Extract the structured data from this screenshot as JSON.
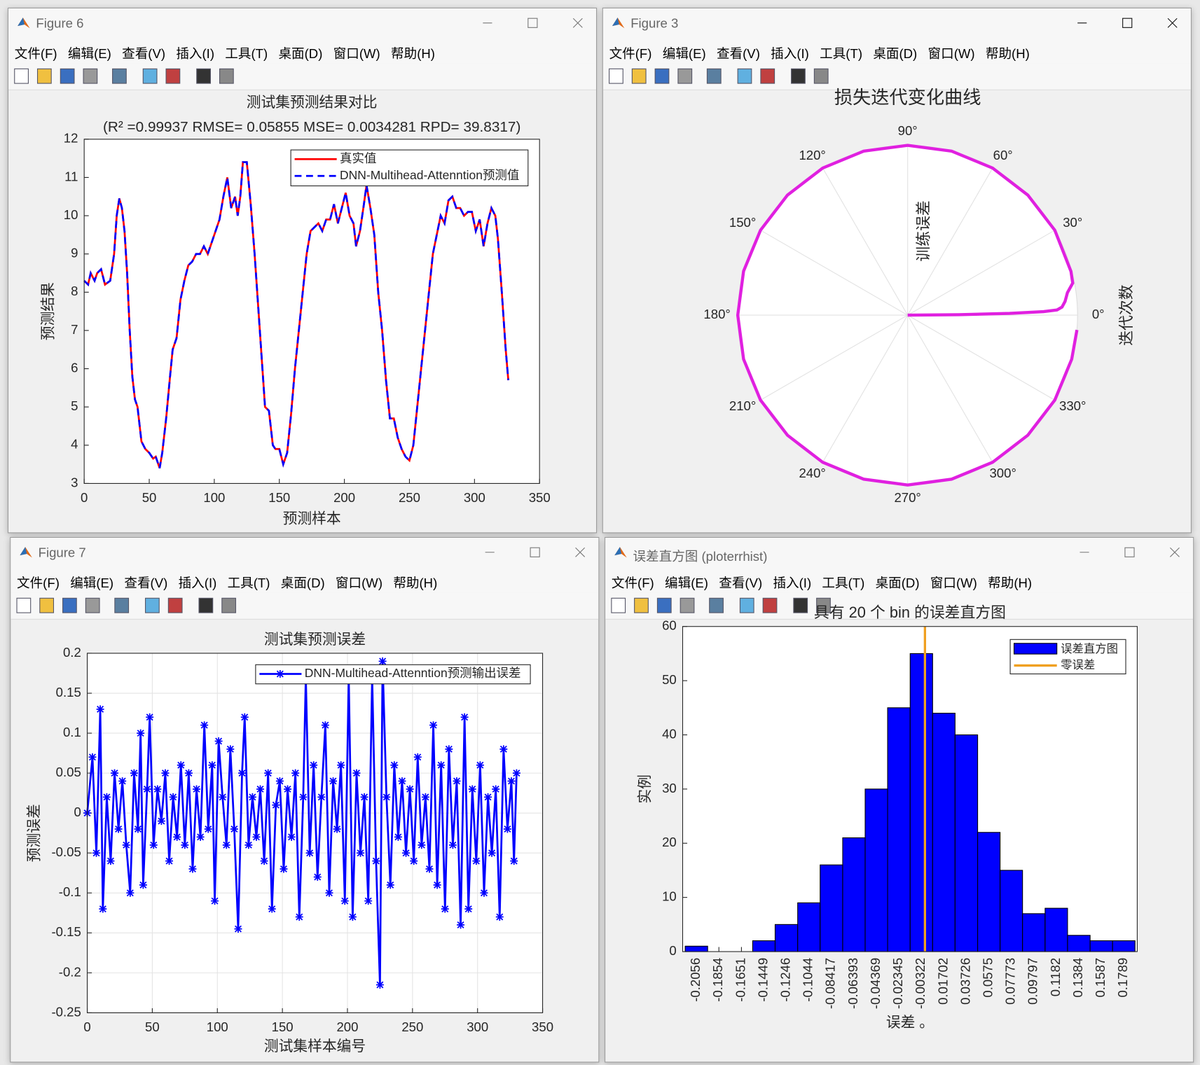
{
  "windows": [
    {
      "title": "Figure 6"
    },
    {
      "title": "Figure 3"
    },
    {
      "title": "Figure 7"
    },
    {
      "title": "误差直方图 (ploterrhist)"
    }
  ],
  "menu": [
    "文件(F)",
    "编辑(E)",
    "查看(V)",
    "插入(I)",
    "工具(T)",
    "桌面(D)",
    "窗口(W)",
    "帮助(H)"
  ],
  "chart_data": [
    {
      "type": "line",
      "title": "测试集预测结果对比",
      "subtitle": "(R² =0.99937 RMSE= 0.05855 MSE= 0.0034281 RPD= 39.8317)",
      "x_label": "预测样本",
      "y_label": "预测结果",
      "grid": false,
      "legend": "upper right",
      "xlim": [
        0,
        350
      ],
      "xticks": [
        0,
        50,
        100,
        150,
        200,
        250,
        300,
        350
      ],
      "ylim": [
        3,
        12
      ],
      "yticks": [
        3,
        4,
        5,
        6,
        7,
        8,
        9,
        10,
        11,
        12
      ],
      "x": [
        0,
        3,
        5,
        8,
        10,
        13,
        16,
        20,
        23,
        25,
        27,
        29,
        31,
        33,
        35,
        37,
        39,
        41,
        44,
        47,
        50,
        53,
        55,
        58,
        60,
        63,
        66,
        68,
        71,
        74,
        77,
        80,
        83,
        86,
        89,
        92,
        95,
        98,
        101,
        104,
        107,
        110,
        113,
        116,
        118,
        120,
        122,
        125,
        128,
        131,
        134,
        137,
        139,
        142,
        145,
        147,
        150,
        153,
        156,
        159,
        162,
        165,
        168,
        171,
        174,
        177,
        180,
        183,
        186,
        189,
        192,
        195,
        198,
        201,
        204,
        207,
        209,
        212,
        215,
        217,
        220,
        223,
        226,
        229,
        232,
        235,
        238,
        241,
        244,
        247,
        250,
        253,
        256,
        259,
        262,
        265,
        268,
        271,
        274,
        277,
        280,
        283,
        286,
        289,
        292,
        295,
        298,
        301,
        304,
        307,
        310,
        313,
        316,
        318,
        321,
        324,
        326
      ],
      "series": [
        {
          "name": "真实值",
          "color": "#ff0000",
          "dash": false,
          "values": [
            8.3,
            8.2,
            8.5,
            8.3,
            8.5,
            8.6,
            8.2,
            8.3,
            9.0,
            10.0,
            10.45,
            10.2,
            9.6,
            8.5,
            7.0,
            5.8,
            5.2,
            5.0,
            4.1,
            3.9,
            3.8,
            3.65,
            3.7,
            3.4,
            3.8,
            4.7,
            5.8,
            6.5,
            6.8,
            7.8,
            8.3,
            8.7,
            8.8,
            9.0,
            9.0,
            9.2,
            9.0,
            9.3,
            9.6,
            9.9,
            10.5,
            11.0,
            10.2,
            10.5,
            10.0,
            10.5,
            11.4,
            11.4,
            10.3,
            9.0,
            7.5,
            6.0,
            5.0,
            4.9,
            4.0,
            3.9,
            3.9,
            3.5,
            3.8,
            4.8,
            6.0,
            7.0,
            8.0,
            9.0,
            9.6,
            9.7,
            9.8,
            9.6,
            9.9,
            9.9,
            10.3,
            9.8,
            10.2,
            10.6,
            10.0,
            9.8,
            9.2,
            9.6,
            10.3,
            10.8,
            10.2,
            9.5,
            8.0,
            7.0,
            5.7,
            4.7,
            4.7,
            4.2,
            3.9,
            3.7,
            3.6,
            4.0,
            5.0,
            6.0,
            7.0,
            8.0,
            9.0,
            9.5,
            10.0,
            9.8,
            10.4,
            10.5,
            10.2,
            10.2,
            10.0,
            10.1,
            10.1,
            9.6,
            9.9,
            9.2,
            9.8,
            10.2,
            10.0,
            9.4,
            8.0,
            6.5,
            5.7
          ]
        },
        {
          "name": "DNN-Multihead-Attenntion预测值",
          "color": "#0000ff",
          "dash": true,
          "values": [
            8.3,
            8.2,
            8.5,
            8.3,
            8.5,
            8.6,
            8.2,
            8.3,
            9.0,
            10.0,
            10.45,
            10.2,
            9.6,
            8.5,
            7.0,
            5.8,
            5.2,
            5.0,
            4.1,
            3.9,
            3.8,
            3.65,
            3.7,
            3.4,
            3.8,
            4.7,
            5.8,
            6.5,
            6.8,
            7.8,
            8.3,
            8.7,
            8.8,
            9.0,
            9.0,
            9.2,
            9.0,
            9.3,
            9.6,
            9.9,
            10.5,
            11.0,
            10.2,
            10.5,
            10.0,
            10.5,
            11.4,
            11.4,
            10.3,
            9.0,
            7.5,
            6.0,
            5.0,
            4.9,
            4.0,
            3.9,
            3.9,
            3.5,
            3.8,
            4.8,
            6.0,
            7.0,
            8.0,
            9.0,
            9.6,
            9.7,
            9.8,
            9.6,
            9.9,
            9.9,
            10.3,
            9.8,
            10.2,
            10.6,
            10.0,
            9.8,
            9.2,
            9.6,
            10.3,
            10.8,
            10.2,
            9.5,
            8.0,
            7.0,
            5.7,
            4.7,
            4.7,
            4.2,
            3.9,
            3.7,
            3.6,
            4.0,
            5.0,
            6.0,
            7.0,
            8.0,
            9.0,
            9.5,
            10.0,
            9.8,
            10.4,
            10.5,
            10.2,
            10.2,
            10.0,
            10.1,
            10.1,
            9.6,
            9.9,
            9.2,
            9.8,
            10.2,
            10.0,
            9.4,
            8.0,
            6.5,
            5.7
          ]
        }
      ]
    },
    {
      "type": "polar",
      "title": "损失迭代变化曲线",
      "r_label": "训练误差",
      "theta_label": "迭代次数",
      "color": "#e020e0",
      "rlim": [
        0,
        1
      ],
      "thetaticks": [
        {
          "value": 0,
          "label": "0°"
        },
        {
          "value": 30,
          "label": "30°"
        },
        {
          "value": 60,
          "label": "60°"
        },
        {
          "value": 90,
          "label": "90°"
        },
        {
          "value": 120,
          "label": "120°"
        },
        {
          "value": 150,
          "label": "150°"
        },
        {
          "value": 180,
          "label": "180°"
        },
        {
          "value": 210,
          "label": "210°"
        },
        {
          "value": 240,
          "label": "240°"
        },
        {
          "value": 270,
          "label": "270°"
        },
        {
          "value": 300,
          "label": "300°"
        },
        {
          "value": 330,
          "label": "330°"
        }
      ],
      "theta": [
        0,
        0.5,
        1,
        1.5,
        2,
        3,
        5,
        8,
        11,
        15,
        30,
        45,
        60,
        75,
        90,
        105,
        120,
        135,
        150,
        165,
        180,
        195,
        210,
        225,
        240,
        255,
        270,
        285,
        300,
        315,
        330,
        345,
        355
      ],
      "r": [
        0,
        0.3,
        0.6,
        0.8,
        0.88,
        0.91,
        0.93,
        0.95,
        0.99,
        0.995,
        1,
        1,
        1,
        1,
        1,
        1,
        1,
        1,
        1,
        1,
        1,
        1,
        1,
        1,
        1,
        1,
        1,
        1,
        1,
        1,
        1,
        1,
        1
      ]
    },
    {
      "type": "line",
      "title": "测试集预测误差",
      "x_label": "测试集样本编号",
      "y_label": "预测误差",
      "grid": true,
      "legend": "upper right",
      "xlim": [
        0,
        350
      ],
      "xticks": [
        0,
        50,
        100,
        150,
        200,
        250,
        300,
        350
      ],
      "ylim": [
        -0.25,
        0.2
      ],
      "yticks": [
        -0.25,
        -0.2,
        -0.15,
        -0.1,
        -0.05,
        0,
        0.05,
        0.1,
        0.15,
        0.2
      ],
      "x": [
        0,
        4,
        7,
        10,
        12,
        15,
        18,
        21,
        24,
        27,
        30,
        33,
        36,
        39,
        41,
        43,
        46,
        48,
        51,
        54,
        57,
        60,
        63,
        66,
        69,
        72,
        75,
        78,
        81,
        84,
        87,
        90,
        93,
        96,
        98,
        101,
        104,
        107,
        110,
        113,
        116,
        119,
        121,
        124,
        127,
        130,
        133,
        136,
        139,
        142,
        145,
        148,
        151,
        154,
        157,
        160,
        163,
        166,
        168,
        171,
        174,
        177,
        180,
        183,
        186,
        189,
        192,
        195,
        198,
        201,
        204,
        207,
        210,
        213,
        216,
        219,
        222,
        225,
        227,
        230,
        233,
        236,
        239,
        242,
        245,
        248,
        251,
        254,
        257,
        260,
        263,
        266,
        269,
        272,
        275,
        278,
        281,
        284,
        287,
        290,
        293,
        296,
        299,
        302,
        305,
        308,
        311,
        314,
        317,
        320,
        323,
        326,
        328,
        330
      ],
      "series": [
        {
          "name": "DNN-Multihead-Attenntion预测输出误差",
          "color": "#0000ff",
          "dash": false,
          "marker": "star",
          "values": [
            0.0,
            0.07,
            -0.05,
            0.13,
            -0.12,
            0.02,
            -0.06,
            0.05,
            -0.02,
            0.04,
            -0.04,
            -0.1,
            0.05,
            -0.02,
            0.1,
            -0.09,
            0.03,
            0.12,
            -0.04,
            0.03,
            -0.01,
            0.05,
            -0.06,
            0.02,
            -0.03,
            0.06,
            -0.04,
            0.05,
            -0.07,
            0.03,
            -0.03,
            0.11,
            -0.02,
            0.06,
            -0.11,
            0.09,
            0.02,
            -0.04,
            0.08,
            -0.02,
            -0.145,
            0.05,
            0.12,
            -0.04,
            0.02,
            -0.03,
            0.03,
            -0.06,
            0.05,
            -0.12,
            0.01,
            0.04,
            -0.07,
            0.03,
            -0.03,
            0.05,
            -0.13,
            0.02,
            0.17,
            -0.05,
            0.06,
            -0.08,
            0.02,
            0.11,
            -0.1,
            0.04,
            -0.02,
            0.06,
            -0.11,
            0.17,
            -0.13,
            0.05,
            -0.05,
            0.02,
            -0.11,
            0.17,
            -0.06,
            -0.215,
            0.19,
            0.02,
            -0.09,
            0.06,
            -0.03,
            0.04,
            -0.05,
            0.03,
            -0.06,
            0.07,
            -0.04,
            0.02,
            -0.07,
            0.11,
            -0.09,
            0.06,
            -0.12,
            0.08,
            -0.04,
            0.04,
            -0.14,
            0.12,
            -0.12,
            0.03,
            -0.06,
            0.06,
            -0.1,
            0.02,
            -0.05,
            0.03,
            -0.13,
            0.08,
            -0.02,
            0.04,
            -0.06,
            0.05
          ]
        }
      ]
    },
    {
      "type": "histogram",
      "title": "具有 20 个 bin 的误差直方图",
      "x_label": "误差 。",
      "y_label": "实例",
      "name": "误差直方图",
      "color": "#0000ff",
      "legend": "upper right",
      "bins": [
        -0.2157,
        -0.1955,
        -0.1752,
        -0.155,
        -0.1348,
        -0.1145,
        -0.0943,
        -0.074,
        -0.0538,
        -0.0336,
        -0.0133,
        0.0069,
        0.0271,
        0.0474,
        0.0676,
        0.0878,
        0.1081,
        0.1283,
        0.1486,
        0.1688,
        0.189
      ],
      "values": [
        1,
        0,
        0,
        2,
        5,
        9,
        16,
        21,
        30,
        45,
        55,
        44,
        40,
        22,
        15,
        7,
        8,
        3,
        2,
        2
      ],
      "zero_line": {
        "name": "零误差",
        "value": 0,
        "color": "#f0a020"
      },
      "xlim": [
        -0.218,
        0.191
      ],
      "xticks": [
        -0.2056,
        -0.1854,
        -0.1651,
        -0.1449,
        -0.1246,
        -0.1044,
        -0.08417,
        -0.06393,
        -0.04369,
        -0.02345,
        -0.00322,
        0.01702,
        0.03726,
        0.0575,
        0.07773,
        0.09797,
        0.1182,
        0.1384,
        0.1587,
        0.1789
      ],
      "ylim": [
        0,
        60
      ],
      "yticks": [
        0,
        10,
        20,
        30,
        40,
        50,
        60
      ]
    }
  ]
}
